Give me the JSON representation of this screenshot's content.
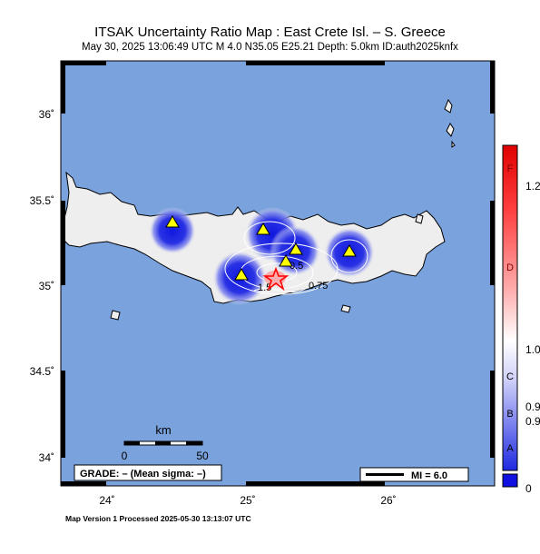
{
  "header": {
    "title": "ITSAK Uncertainty Ratio Map : East Crete Isl. – S. Greece",
    "event_info": "May 30, 2025 13:06:49 UTC   M 4.0   N35.05 E25.21   Depth: 5.0km   ID:auth2025knfx"
  },
  "axes": {
    "lat_ticks": [
      "36˚",
      "35.5˚",
      "35˚",
      "34.5˚",
      "34˚"
    ],
    "lon_ticks": [
      "24˚",
      "25˚",
      "26˚"
    ]
  },
  "scale_bar": {
    "unit": "km",
    "start": "0",
    "end": "50"
  },
  "grade_box": {
    "text": "GRADE: – (Mean sigma: –)"
  },
  "legend": {
    "mi_label": "MI = 6.0"
  },
  "colorbar": {
    "grades": [
      "F",
      "D",
      "C",
      "B",
      "A"
    ],
    "values": [
      "1.2",
      "1.0",
      "0.9",
      "0.9",
      "0"
    ]
  },
  "contours": {
    "labels": [
      "0.5",
      "0.75",
      "1.5"
    ]
  },
  "colors": {
    "sea": "#7aa2dc",
    "land": "#eeeeee",
    "low_uncertainty": "#1a22e0",
    "epicenter": "#ff3030",
    "station": "#ffff00"
  },
  "footer": {
    "text": "Map Version 1 Processed 2025-05-30 13:13:07 UTC"
  }
}
